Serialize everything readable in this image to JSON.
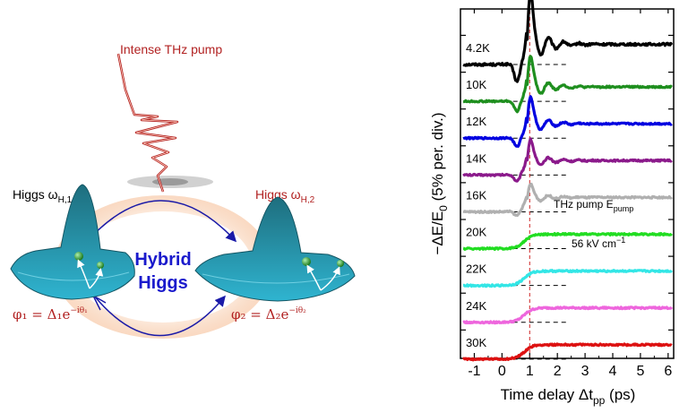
{
  "left_panel": {
    "pump_label": "Intense THz pump",
    "higgs1_label": "Higgs ω",
    "higgs1_sub": "H,1",
    "higgs2_label": "Higgs ω",
    "higgs2_sub": "H,2",
    "hybrid_line1": "Hybrid",
    "hybrid_line2": "Higgs",
    "phi1_main": "φ₁ = Δ₁e",
    "phi1_sup": "−iθ₁",
    "phi2_main": "φ₂ = Δ₂e",
    "phi2_sup": "−iθ₂",
    "colors": {
      "pump": "#b22222",
      "arrows": "#1a1aa8",
      "hybrid": "#1a1acc",
      "surface": "#2aa6c4",
      "ball": "#2e9a2e"
    }
  },
  "chart_data": {
    "type": "line",
    "xlabel": "Time delay Δt",
    "xlabel_sub": "pp",
    "xlabel_unit": " (ps)",
    "ylabel_main": "−ΔE/E",
    "ylabel_sub": "0",
    "ylabel_rest": " (5% per. div.)",
    "xlim": [
      -1.5,
      6.2
    ],
    "xticks": [
      "-1",
      "0",
      "1",
      "2",
      "3",
      "4",
      "5",
      "6"
    ],
    "pump_marker_x": 1.0,
    "annotation_line1": "THz pump E",
    "annotation_sub": "pump",
    "annotation_line2": "56 kV cm",
    "annotation_sup": "−1",
    "series": [
      {
        "name": "4.2K",
        "color": "#000000",
        "offset": 0,
        "peak": 1.0
      },
      {
        "name": "10K",
        "color": "#1f8f1f",
        "offset": 1,
        "peak": 0.85
      },
      {
        "name": "12K",
        "color": "#0000e0",
        "offset": 2,
        "peak": 0.75
      },
      {
        "name": "14K",
        "color": "#8b1a8b",
        "offset": 3,
        "peak": 0.6
      },
      {
        "name": "16K",
        "color": "#b0b0b0",
        "offset": 4,
        "peak": 0.4
      },
      {
        "name": "20K",
        "color": "#22dd22",
        "offset": 5,
        "peak": 0.0
      },
      {
        "name": "22K",
        "color": "#33e6e6",
        "offset": 6,
        "peak": 0.0
      },
      {
        "name": "24K",
        "color": "#ee66dd",
        "offset": 7,
        "peak": 0.0
      },
      {
        "name": "30K",
        "color": "#dd1111",
        "offset": 8,
        "peak": 0.0
      }
    ]
  }
}
